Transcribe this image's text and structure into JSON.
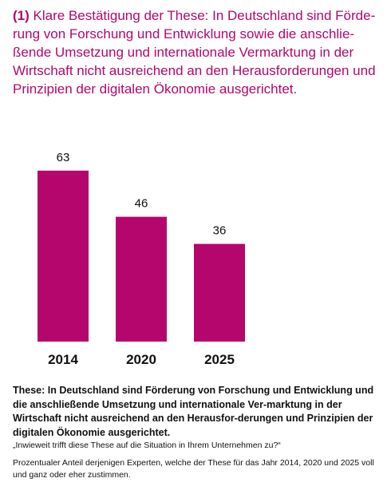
{
  "heading": {
    "number": "(1)",
    "text": "Klare Bestätigung der These: In Deutschland sind Förde-rung von Forschung und Entwicklung sowie die anschlie-ßende Umsetzung und internationale Vermarktung in der Wirtschaft nicht ausreichend an den Herausforderungen und Prinzipien der digitalen Ökonomie ausgerichtet."
  },
  "chart_data": {
    "type": "bar",
    "categories": [
      "2014",
      "2020",
      "2025"
    ],
    "values": [
      63,
      46,
      36
    ],
    "bar_color": "#b5066e",
    "ylim": [
      0,
      70
    ],
    "grid": false
  },
  "footer": {
    "thesis": "These: In Deutschland sind Förderung von Forschung und Entwicklung und die anschließende Umsetzung und internationale Ver-marktung in der Wirtschaft nicht ausreichend an den Herausfor-derungen und Prinzipien der digitalen Ökonomie ausgerichtet.",
    "question": "„Inwieweit trifft diese These auf die Situation in Ihrem Unternehmen zu?“",
    "note": "Prozentualer Anteil derjenigen Experten, welche der These für das Jahr 2014, 2020 und 2025 voll und ganz oder eher zustimmen."
  }
}
